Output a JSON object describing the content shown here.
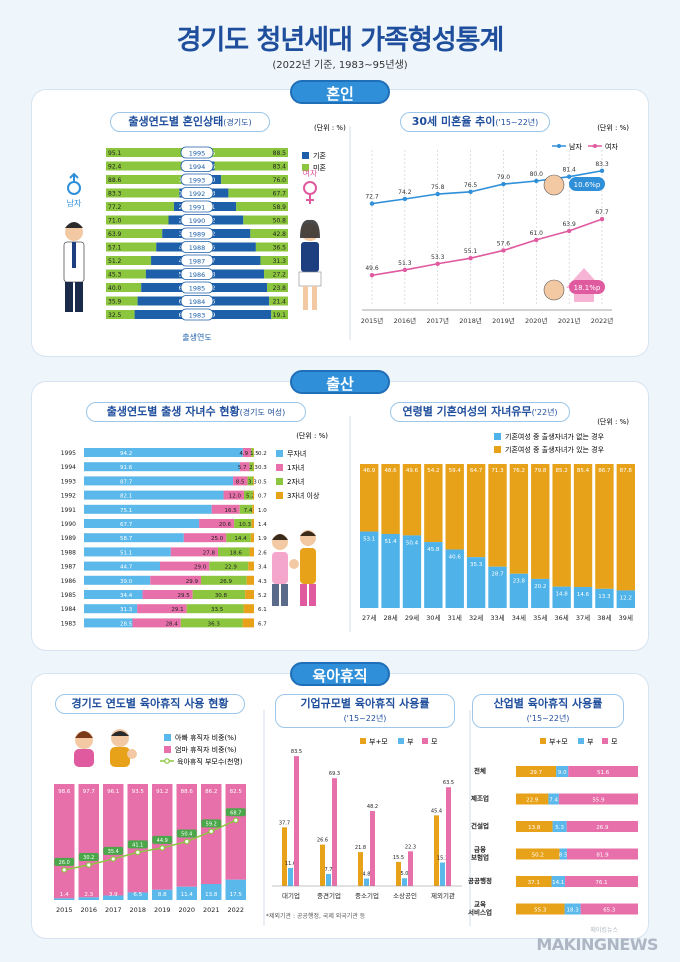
{
  "header": {
    "title": "경기도 청년세대 가족형성통계",
    "subtitle": "(2022년 기준, 1983~95년생)"
  },
  "sections": {
    "marriage": "혼인",
    "birth": "출산",
    "leave": "육아휴직"
  },
  "marriage_status": {
    "title": "출생연도별 혼인상태",
    "title_small": "(경기도)",
    "unit": "(단위 : %)",
    "legend_married": "기혼",
    "legend_single": "미혼",
    "axis_label": "출생연도",
    "male_label": "남자",
    "female_label": "여자",
    "colors": {
      "married": "#1d5fa8",
      "single": "#8cc63f"
    }
  },
  "single_rate": {
    "title": "30세 미혼율 추이",
    "title_small": "('15~22년)",
    "unit": "(단위 : %)",
    "legend_male": "남자",
    "legend_female": "여자",
    "badge_male": "10.6%p",
    "badge_female": "18.1%p"
  },
  "children_by_year": {
    "title": "출생연도별 출생 자녀수 현황",
    "title_small": "(경기도 여성)",
    "unit": "(단위 : %)",
    "legend": [
      "무자녀",
      "1자녀",
      "2자녀",
      "3자녀 이상"
    ]
  },
  "child_presence": {
    "title": "연령별 기혼여성의 자녀유무",
    "title_small": "('22년)",
    "unit": "(단위 : %)",
    "legend_none": "기혼여성 중 출생자녀가 없는 경우",
    "legend_have": "기혼여성 중 출생자녀가 있는 경우"
  },
  "leave_trend": {
    "title": "경기도 연도별 육아휴직 사용 현황",
    "legend_father": "아빠 휴직자 비중(%)",
    "legend_mother": "엄마 휴직자 비중(%)",
    "legend_parents": "육아휴직 부모수(천명)"
  },
  "leave_by_size": {
    "title": "기업규모별 육아휴직 사용률",
    "title_small": "('15~22년)",
    "legend": [
      "부+모",
      "부",
      "모"
    ],
    "footnote": "*제외기관 : 공공행정, 국제 외국기관 등"
  },
  "leave_by_industry": {
    "title": "산업별 육아휴직 사용률",
    "title_small": "('15~22년)",
    "legend": [
      "부+모",
      "부",
      "모"
    ]
  },
  "watermark": {
    "main": "MAKINGNEWS",
    "small": "메이킹뉴스"
  },
  "chart_data": [
    {
      "type": "bar",
      "title": "출생연도별 혼인상태",
      "categories": [
        "1995",
        "1994",
        "1993",
        "1992",
        "1991",
        "1990",
        "1989",
        "1988",
        "1987",
        "1986",
        "1985",
        "1984",
        "1983"
      ],
      "series": [
        {
          "name": "기혼",
          "values": [
            4.9,
            7.6,
            11.4,
            16.7,
            22.8,
            29.0,
            36.1,
            42.9,
            48.8,
            54.7,
            60.0,
            64.1,
            67.5
          ]
        },
        {
          "name": "미혼",
          "values": [
            95.1,
            92.4,
            88.6,
            83.3,
            77.2,
            71.0,
            63.9,
            57.1,
            51.2,
            45.3,
            40.0,
            35.9,
            32.5
          ]
        }
      ],
      "series_male_married": [
        11.5,
        16.5,
        24.0,
        32.3,
        41.1,
        49.2,
        57.2,
        63.5,
        68.7,
        72.8,
        76.2,
        78.6,
        80.9
      ],
      "series_male_single": [
        88.5,
        83.4,
        76.0,
        67.7,
        58.9,
        50.8,
        42.8,
        36.5,
        31.3,
        27.2,
        23.8,
        21.4,
        19.1
      ],
      "xlabel": "출생연도"
    },
    {
      "type": "line",
      "title": "30세 미혼율 추이",
      "categories": [
        "2015년",
        "2016년",
        "2017년",
        "2018년",
        "2019년",
        "2020년",
        "2021년",
        "2022년"
      ],
      "series": [
        {
          "name": "남자",
          "values": [
            72.7,
            74.2,
            75.8,
            76.5,
            79.0,
            80.0,
            81.4,
            83.3
          ]
        },
        {
          "name": "여자",
          "values": [
            49.6,
            51.3,
            53.3,
            55.1,
            57.6,
            61.0,
            63.9,
            67.7
          ]
        }
      ]
    },
    {
      "type": "bar",
      "title": "출생연도별 출생 자녀수 현황",
      "categories": [
        "1995",
        "1994",
        "1993",
        "1992",
        "1991",
        "1990",
        "1989",
        "1988",
        "1987",
        "1986",
        "1985",
        "1984",
        "1983"
      ],
      "series": [
        {
          "name": "무자녀",
          "values": [
            94.2,
            91.6,
            87.7,
            82.1,
            75.1,
            67.7,
            58.7,
            51.1,
            44.7,
            39.0,
            34.4,
            31.3,
            28.5
          ]
        },
        {
          "name": "1자녀",
          "values": [
            4.9,
            5.7,
            8.5,
            12.0,
            16.5,
            20.6,
            25.0,
            27.8,
            29.0,
            29.9,
            29.5,
            29.1,
            28.4
          ]
        },
        {
          "name": "2자녀",
          "values": [
            1.5,
            2.3,
            3.3,
            5.2,
            7.4,
            10.3,
            14.4,
            18.6,
            22.9,
            26.9,
            30.8,
            33.5,
            36.3
          ]
        },
        {
          "name": "3자녀 이상",
          "values": [
            0.2,
            0.3,
            0.5,
            0.7,
            1.0,
            1.4,
            1.9,
            2.6,
            3.4,
            4.3,
            5.2,
            6.1,
            6.7
          ]
        }
      ]
    },
    {
      "type": "bar",
      "title": "연령별 기혼여성의 자녀유무",
      "categories": [
        "27세",
        "28세",
        "29세",
        "30세",
        "31세",
        "32세",
        "33세",
        "34세",
        "35세",
        "36세",
        "37세",
        "38세",
        "39세"
      ],
      "series": [
        {
          "name": "기혼여성 중 출생자녀가 없는 경우",
          "values": [
            53.1,
            51.4,
            50.4,
            45.8,
            40.6,
            35.3,
            28.7,
            23.8,
            20.2,
            14.8,
            14.6,
            13.3,
            12.2
          ]
        },
        {
          "name": "기혼여성 중 출생자녀가 있는 경우",
          "values": [
            46.9,
            48.6,
            49.6,
            54.2,
            59.4,
            64.7,
            71.3,
            76.2,
            79.8,
            85.2,
            85.4,
            86.7,
            87.8
          ]
        }
      ]
    },
    {
      "type": "bar",
      "title": "경기도 연도별 육아휴직 사용 현황",
      "categories": [
        "2015",
        "2016",
        "2017",
        "2018",
        "2019",
        "2020",
        "2021",
        "2022"
      ],
      "series": [
        {
          "name": "아빠 휴직자 비중(%)",
          "values": [
            1.4,
            2.3,
            3.9,
            6.5,
            8.8,
            11.4,
            13.8,
            17.5
          ]
        },
        {
          "name": "엄마 휴직자 비중(%)",
          "values": [
            98.6,
            97.7,
            96.1,
            93.5,
            91.2,
            88.6,
            86.2,
            82.5
          ]
        },
        {
          "name": "육아휴직 부모수(천명)",
          "values": [
            26.0,
            30.2,
            35.4,
            41.1,
            44.9,
            50.4,
            59.2,
            68.7
          ]
        }
      ]
    },
    {
      "type": "bar",
      "title": "기업규모별 육아휴직 사용률",
      "categories": [
        "대기업",
        "중견기업",
        "중소기업",
        "소상공인",
        "제외기관"
      ],
      "series": [
        {
          "name": "부+모",
          "values": [
            37.7,
            26.6,
            21.8,
            15.5,
            45.4
          ]
        },
        {
          "name": "부",
          "values": [
            11.6,
            7.7,
            4.8,
            5.0,
            15.1
          ]
        },
        {
          "name": "모",
          "values": [
            83.5,
            69.3,
            48.2,
            22.3,
            63.5
          ]
        }
      ]
    },
    {
      "type": "bar",
      "title": "산업별 육아휴직 사용률",
      "categories": [
        "전체",
        "제조업",
        "건설업",
        "금융 보험업",
        "공공행정",
        "교육 서비스업"
      ],
      "series": [
        {
          "name": "부+모",
          "values": [
            29.7,
            22.9,
            13.8,
            50.2,
            37.1,
            55.3
          ]
        },
        {
          "name": "부",
          "values": [
            9.0,
            7.4,
            5.3,
            8.5,
            14.1,
            18.3
          ]
        },
        {
          "name": "모",
          "values": [
            51.6,
            55.9,
            26.9,
            81.9,
            76.1,
            65.3
          ]
        }
      ]
    }
  ]
}
